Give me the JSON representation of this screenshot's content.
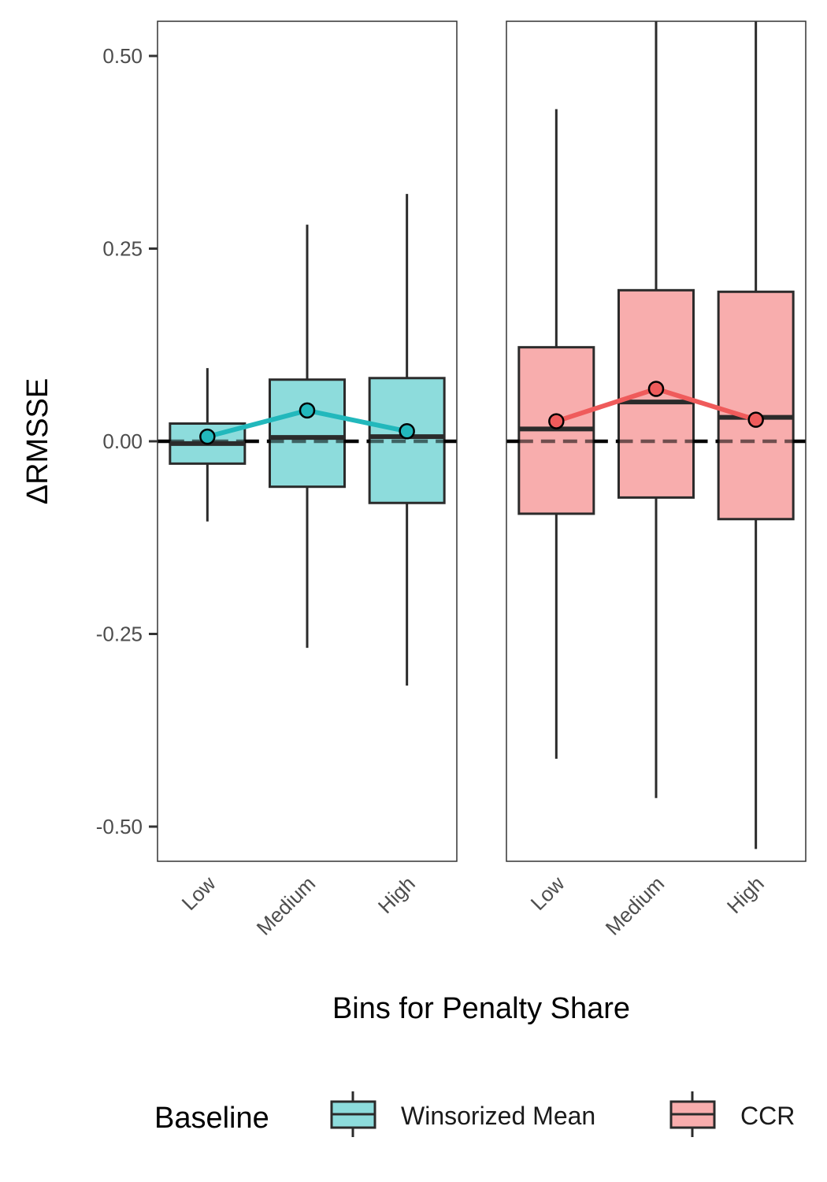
{
  "chart_data": {
    "type": "boxplot",
    "xlabel": "Bins for Penalty Share",
    "ylabel": "ΔRMSSE",
    "ylim": [
      -0.545,
      0.545
    ],
    "yticks": [
      0.5,
      0.25,
      0.0,
      -0.25,
      -0.5
    ],
    "ytick_labels": [
      "0.50",
      "0.25",
      "0.00",
      "-0.25",
      "-0.50"
    ],
    "categories": [
      "Low",
      "Medium",
      "High"
    ],
    "reference_line": 0.0,
    "legend": {
      "title": "Baseline",
      "position": "bottom",
      "entries": [
        {
          "label": "Winsorized Mean",
          "fill": "#8ddcdc"
        },
        {
          "label": "CCR",
          "fill": "#f8adad"
        }
      ]
    },
    "panels": [
      {
        "name": "Winsorized Mean",
        "fill": "#8ddcdc",
        "line_color": "#22b8bc",
        "boxes": [
          {
            "category": "Low",
            "whisker_low": -0.104,
            "q1": -0.029,
            "median": -0.003,
            "q3": 0.023,
            "whisker_high": 0.095,
            "mean": 0.006
          },
          {
            "category": "Medium",
            "whisker_low": -0.268,
            "q1": -0.059,
            "median": 0.005,
            "q3": 0.08,
            "whisker_high": 0.281,
            "mean": 0.04
          },
          {
            "category": "High",
            "whisker_low": -0.317,
            "q1": -0.08,
            "median": 0.006,
            "q3": 0.082,
            "whisker_high": 0.321,
            "mean": 0.013
          }
        ]
      },
      {
        "name": "CCR",
        "fill": "#f8adad",
        "line_color": "#ef5b5b",
        "boxes": [
          {
            "category": "Low",
            "whisker_low": -0.412,
            "q1": -0.094,
            "median": 0.016,
            "q3": 0.122,
            "whisker_high": 0.431,
            "mean": 0.026
          },
          {
            "category": "Medium",
            "whisker_low": -0.463,
            "q1": -0.073,
            "median": 0.051,
            "q3": 0.196,
            "whisker_high": 0.545,
            "mean": 0.068
          },
          {
            "category": "High",
            "whisker_low": -0.529,
            "q1": -0.101,
            "median": 0.031,
            "q3": 0.194,
            "whisker_high": 0.545,
            "mean": 0.028
          }
        ]
      }
    ]
  }
}
